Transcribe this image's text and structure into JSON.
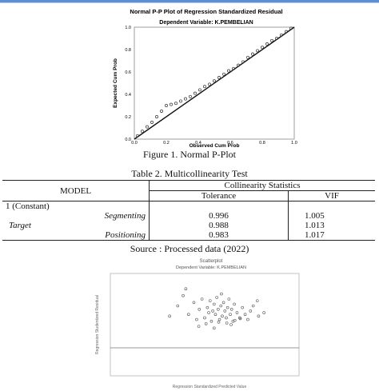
{
  "figure1": {
    "title": "Normal P-P Plot of Regression Standardized Residual",
    "subtitle": "Dependent Variable: K.PEMBELIAN",
    "ylabel": "Expected Cum Prob",
    "xlabel": "Observed Cum Prob",
    "xticks": [
      "0.0",
      "0.2",
      "0.4",
      "0.6",
      "0.8",
      "1.0"
    ],
    "yticks": [
      "0.0",
      "0.2",
      "0.4",
      "0.6",
      "0.8",
      "1.0"
    ],
    "caption": "Figure 1. Normal P-Plot"
  },
  "table": {
    "caption": "Table 2. Multicollinearity Test",
    "header_model": "MODEL",
    "header_group": "Collinearity Statistics",
    "header_tolerance": "Tolerance",
    "header_vif": "VIF",
    "constant_label": "1 (Constant)",
    "target_label": "Target",
    "rows": [
      {
        "name": "Segmenting",
        "tolerance": "0.996",
        "vif": "1.005"
      },
      {
        "name": "",
        "tolerance": "0.988",
        "vif": "1.013"
      },
      {
        "name": "Positioning",
        "tolerance": "0.983",
        "vif": "1.017"
      }
    ],
    "source": "Source : Processed data (2022)"
  },
  "figure2": {
    "title": "Scatterplot",
    "subtitle": "Dependent Variable: K.PEMBELIAN",
    "ylabel": "Regression Studentized Residual",
    "xlabel": "Regression Standardized Predicted Value"
  },
  "chart_data": [
    {
      "type": "line",
      "title": "Normal P-P Plot of Regression Standardized Residual",
      "subtitle": "Dependent Variable: K.PEMBELIAN",
      "xlabel": "Observed Cum Prob",
      "ylabel": "Expected Cum Prob",
      "xlim": [
        0,
        1
      ],
      "ylim": [
        0,
        1
      ],
      "series": [
        {
          "x": [
            0.02,
            0.05,
            0.08,
            0.11,
            0.14,
            0.17,
            0.2,
            0.23,
            0.26,
            0.29,
            0.32,
            0.35,
            0.38,
            0.41,
            0.44,
            0.47,
            0.5,
            0.53,
            0.56,
            0.59,
            0.62,
            0.65,
            0.68,
            0.71,
            0.74,
            0.77,
            0.8,
            0.83,
            0.86,
            0.89,
            0.92,
            0.95,
            0.98
          ],
          "y": [
            0.03,
            0.07,
            0.11,
            0.15,
            0.2,
            0.25,
            0.3,
            0.31,
            0.32,
            0.34,
            0.36,
            0.38,
            0.41,
            0.44,
            0.47,
            0.49,
            0.52,
            0.55,
            0.58,
            0.61,
            0.63,
            0.66,
            0.69,
            0.73,
            0.76,
            0.79,
            0.82,
            0.85,
            0.88,
            0.9,
            0.93,
            0.96,
            0.99
          ]
        }
      ]
    },
    {
      "type": "scatter",
      "title": "Scatterplot",
      "subtitle": "Dependent Variable: K.PEMBELIAN",
      "xlabel": "Regression Standardized Predicted Value",
      "ylabel": "Regression Studentized Residual",
      "xlim": [
        -4,
        3
      ],
      "ylim": [
        -3,
        3
      ],
      "series": [
        {
          "x": [
            -1.8,
            -1.5,
            -1.3,
            -1.1,
            -0.9,
            -0.8,
            -0.7,
            -0.6,
            -0.5,
            -0.4,
            -0.35,
            -0.3,
            -0.25,
            -0.2,
            -0.15,
            -0.1,
            -0.05,
            0,
            0.05,
            0.1,
            0.15,
            0.2,
            0.25,
            0.3,
            0.35,
            0.4,
            0.45,
            0.5,
            0.55,
            0.6,
            0.7,
            0.8,
            0.9,
            1,
            1.1,
            1.2,
            1.3,
            1.5,
            1.7,
            -0.45,
            0.02,
            0.32,
            0.62,
            -0.72,
            0.82,
            -1.2,
            1.45,
            0.12,
            -0.15,
            0.48
          ],
          "y": [
            0.5,
            1.1,
            1.7,
            0.6,
            1.3,
            0.3,
            0.9,
            1.5,
            0.4,
            1.0,
            0.7,
            1.4,
            0.2,
            0.8,
            1.2,
            0.6,
            1.6,
            0.9,
            0.3,
            1.1,
            0.5,
            1.3,
            0.8,
            0.4,
            1.0,
            1.5,
            0.6,
            0.9,
            0.2,
            1.2,
            0.7,
            0.4,
            1.0,
            0.6,
            0.3,
            0.8,
            1.1,
            0.5,
            0.7,
            0.05,
            0.15,
            0.1,
            0.25,
            -0.1,
            0.35,
            2.1,
            1.4,
            1.8,
            -0.2,
            0.0
          ]
        }
      ]
    }
  ]
}
